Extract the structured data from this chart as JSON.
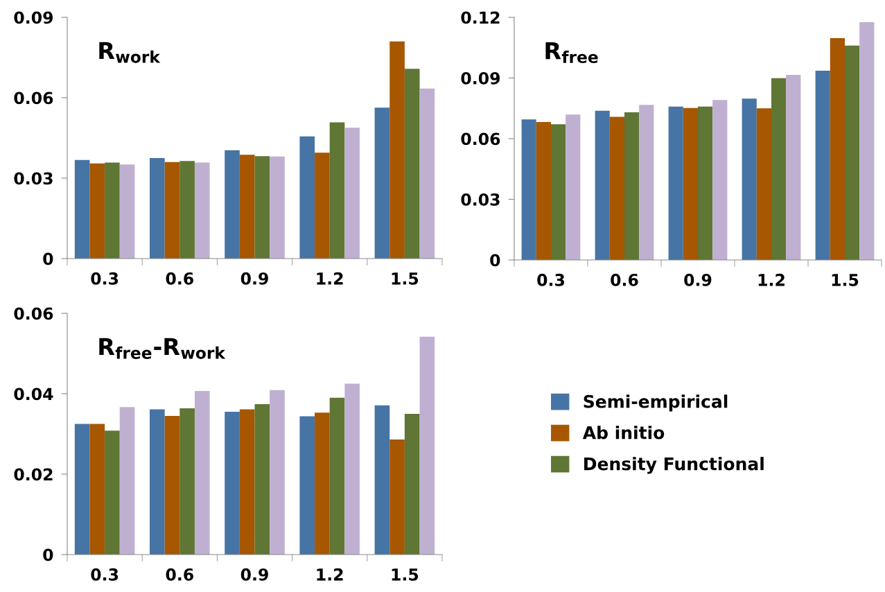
{
  "chart_data": [
    {
      "type": "bar",
      "title": "R$_{work}$",
      "categories": [
        "0.3",
        "0.6",
        "0.9",
        "1.2",
        "1.5"
      ],
      "ylim": [
        0,
        0.09
      ],
      "yticks": [
        {
          "value": 0,
          "label": "0"
        },
        {
          "value": 0.03,
          "label": "0.03"
        },
        {
          "value": 0.06,
          "label": "0.06"
        },
        {
          "value": 0.09,
          "label": "0.09"
        }
      ],
      "grid": false,
      "legend": false,
      "series": [
        {
          "color": "#4674a5",
          "values": [
            0.0368,
            0.0375,
            0.0404,
            0.0456,
            0.0563
          ]
        },
        {
          "color": "#a65700",
          "values": [
            0.0355,
            0.036,
            0.0387,
            0.0395,
            0.081
          ]
        },
        {
          "color": "#5f7634",
          "values": [
            0.0358,
            0.0364,
            0.0382,
            0.0508,
            0.0708
          ]
        },
        {
          "color": "#bfb0d1",
          "values": [
            0.0351,
            0.0358,
            0.0381,
            0.0488,
            0.0634
          ]
        }
      ]
    },
    {
      "type": "bar",
      "title": "R$_{free}$",
      "categories": [
        "0.3",
        "0.6",
        "0.9",
        "1.2",
        "1.5"
      ],
      "ylim": [
        0,
        0.12
      ],
      "yticks": [
        {
          "value": 0,
          "label": "0"
        },
        {
          "value": 0.03,
          "label": "0.03"
        },
        {
          "value": 0.06,
          "label": "0.06"
        },
        {
          "value": 0.09,
          "label": "0.09"
        },
        {
          "value": 0.12,
          "label": "0.12"
        }
      ],
      "grid": false,
      "legend": false,
      "series": [
        {
          "color": "#4674a5",
          "values": [
            0.0695,
            0.0738,
            0.0759,
            0.0798,
            0.0936
          ]
        },
        {
          "color": "#a65700",
          "values": [
            0.0682,
            0.0708,
            0.0752,
            0.075,
            0.1097
          ]
        },
        {
          "color": "#5f7634",
          "values": [
            0.0671,
            0.073,
            0.0759,
            0.0899,
            0.106
          ]
        },
        {
          "color": "#bfb0d1",
          "values": [
            0.0719,
            0.0767,
            0.0791,
            0.0915,
            0.1176
          ]
        }
      ]
    },
    {
      "type": "bar",
      "title": "R$_{free}$-R$_{work}$",
      "categories": [
        "0.3",
        "0.6",
        "0.9",
        "1.2",
        "1.5"
      ],
      "ylim": [
        0,
        0.06
      ],
      "yticks": [
        {
          "value": 0,
          "label": "0"
        },
        {
          "value": 0.02,
          "label": "0.02"
        },
        {
          "value": 0.04,
          "label": "0.04"
        },
        {
          "value": 0.06,
          "label": "0.06"
        }
      ],
      "grid": false,
      "legend": "right",
      "series": [
        {
          "name": "Semi-empirical",
          "color": "#4674a5",
          "values": [
            0.0325,
            0.0361,
            0.0355,
            0.0344,
            0.0371
          ]
        },
        {
          "name": "Ab initio",
          "color": "#a65700",
          "values": [
            0.0325,
            0.0345,
            0.0361,
            0.0353,
            0.0286
          ]
        },
        {
          "name": "Density Functional",
          "color": "#5f7634",
          "values": [
            0.0308,
            0.0364,
            0.0374,
            0.039,
            0.035
          ]
        },
        {
          "color": "#bfb0d1",
          "values": [
            0.0367,
            0.0407,
            0.0409,
            0.0425,
            0.0542
          ]
        }
      ]
    }
  ]
}
